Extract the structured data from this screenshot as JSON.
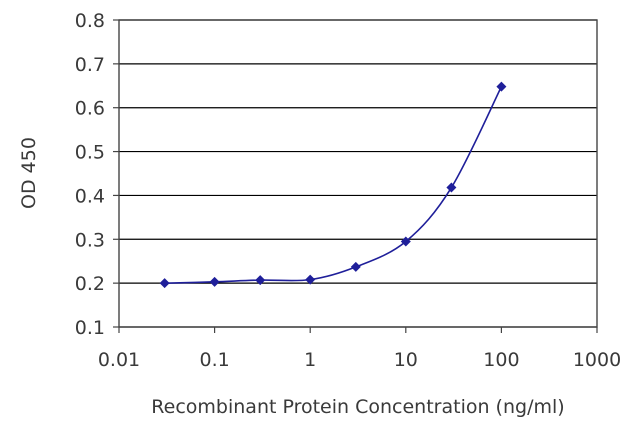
{
  "chart_data": {
    "type": "line",
    "xlabel": "Recombinant Protein Concentration (ng/ml)",
    "ylabel": "OD 450",
    "x_scale": "log",
    "xlim": [
      0.01,
      1000
    ],
    "ylim": [
      0.1,
      0.8
    ],
    "x_ticks": [
      "0.01",
      "0.1",
      "1",
      "10",
      "100",
      "1000"
    ],
    "y_ticks": [
      "0.1",
      "0.2",
      "0.3",
      "0.4",
      "0.5",
      "0.6",
      "0.7",
      "0.8"
    ],
    "grid": "horizontal",
    "series": [
      {
        "x": [
          0.03,
          0.1,
          0.3,
          1,
          3,
          10,
          30,
          100
        ],
        "y": [
          0.2,
          0.203,
          0.207,
          0.208,
          0.237,
          0.295,
          0.418,
          0.648
        ],
        "color": "#1f1f9a"
      }
    ]
  }
}
